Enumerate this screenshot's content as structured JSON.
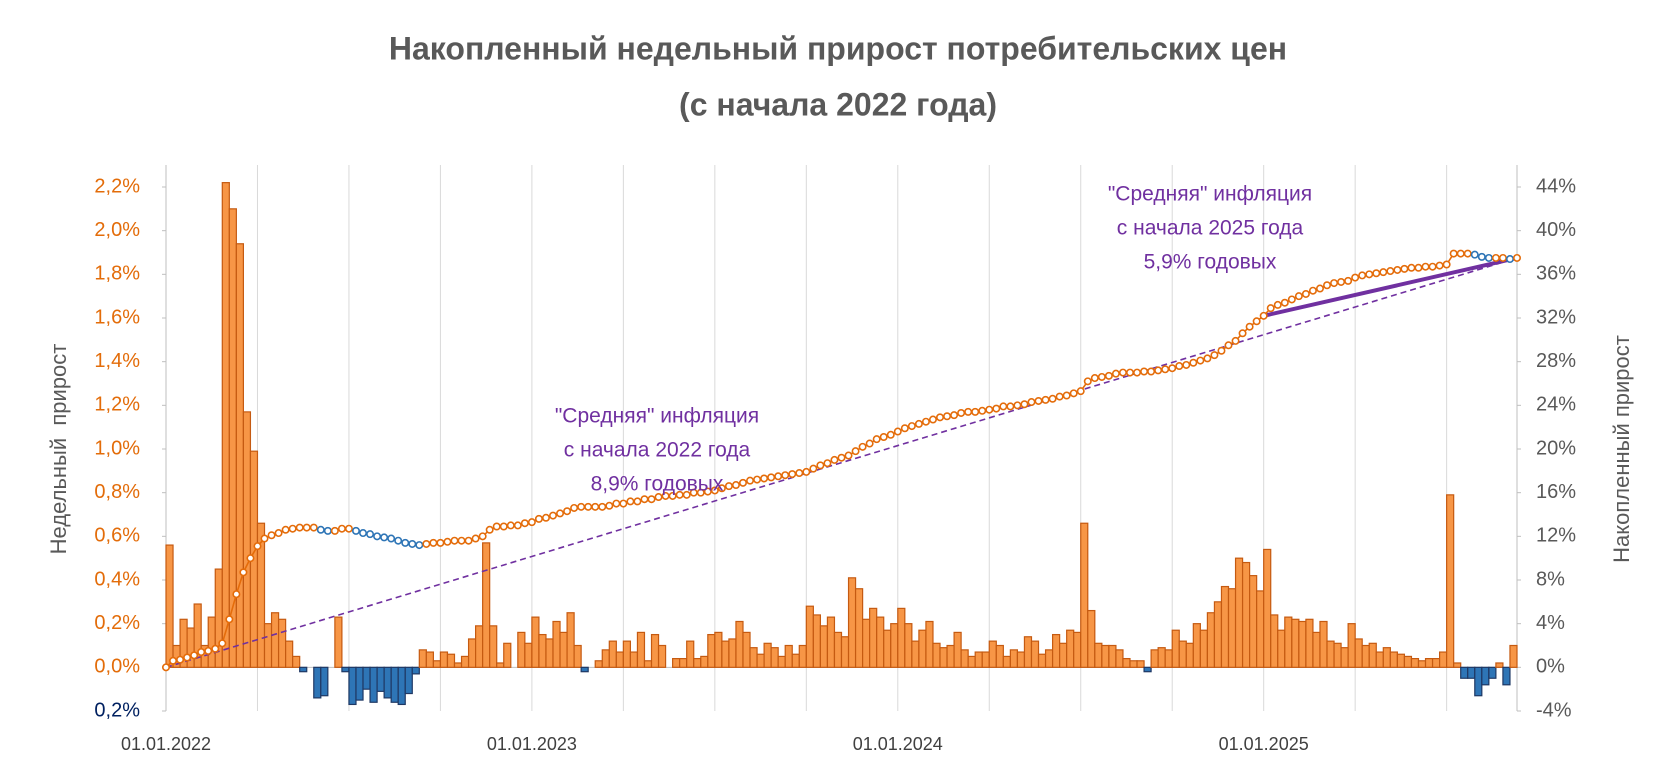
{
  "chart_data": {
    "type": "bar",
    "title": [
      "Накопленный недельный прирост потребительских цен",
      "(с начала 2022 года)"
    ],
    "y_label": "Недельный  прирост",
    "y2_label": "Накопленный прирост",
    "xlim": [
      0,
      192
    ],
    "xticks": [
      {
        "value": 0,
        "label": "01.01.2022"
      },
      {
        "value": 52,
        "label": "01.01.2023"
      },
      {
        "value": 104,
        "label": "01.01.2024"
      },
      {
        "value": 156,
        "label": "01.01.2025"
      }
    ],
    "xgrid": [
      13,
      26,
      39,
      65,
      78,
      91,
      117,
      130,
      143,
      169,
      182
    ],
    "ylim": [
      -0.2,
      2.2
    ],
    "yticks": [
      {
        "value": -0.2,
        "label": "0,2%"
      },
      {
        "value": 0,
        "label": "0,0%"
      },
      {
        "value": 0.2,
        "label": "0,2%"
      },
      {
        "value": 0.4,
        "label": "0,4%"
      },
      {
        "value": 0.6,
        "label": "0,6%"
      },
      {
        "value": 0.8,
        "label": "0,8%"
      },
      {
        "value": 1.0,
        "label": "1,0%"
      },
      {
        "value": 1.2,
        "label": "1,2%"
      },
      {
        "value": 1.4,
        "label": "1,4%"
      },
      {
        "value": 1.6,
        "label": "1,6%"
      },
      {
        "value": 1.8,
        "label": "1,8%"
      },
      {
        "value": 2.0,
        "label": "2,0%"
      },
      {
        "value": 2.2,
        "label": "2,2%"
      }
    ],
    "ytick_color": "#e36c09",
    "ytick_negative_color": "#002060",
    "y2lim": [
      -4,
      44
    ],
    "y2ticks": [
      {
        "value": -4,
        "label": "-4%"
      },
      {
        "value": 0,
        "label": "0%"
      },
      {
        "value": 4,
        "label": "4%"
      },
      {
        "value": 8,
        "label": "8%"
      },
      {
        "value": 12,
        "label": "12%"
      },
      {
        "value": 16,
        "label": "16%"
      },
      {
        "value": 20,
        "label": "20%"
      },
      {
        "value": 24,
        "label": "24%"
      },
      {
        "value": 28,
        "label": "28%"
      },
      {
        "value": 32,
        "label": "32%"
      },
      {
        "value": 36,
        "label": "36%"
      },
      {
        "value": 40,
        "label": "40%"
      },
      {
        "value": 44,
        "label": "44%"
      }
    ],
    "series": [
      {
        "type": "bar",
        "axis": "y",
        "color": "#f79646",
        "border": "#c55a11",
        "negative_color": "#2e75b6",
        "negative_border": "#1f3864",
        "values": [
          0.56,
          0.1,
          0.22,
          0.18,
          0.29,
          0.1,
          0.23,
          0.45,
          2.22,
          2.1,
          1.94,
          1.17,
          0.99,
          0.66,
          0.2,
          0.25,
          0.22,
          0.12,
          0.05,
          -0.02,
          0.0,
          -0.14,
          -0.13,
          0.0,
          0.23,
          -0.02,
          -0.17,
          -0.15,
          -0.1,
          -0.16,
          -0.11,
          -0.14,
          -0.16,
          -0.17,
          -0.12,
          -0.03,
          0.08,
          0.07,
          0.03,
          0.07,
          0.06,
          0.02,
          0.05,
          0.13,
          0.19,
          0.57,
          0.19,
          0.02,
          0.11,
          0.0,
          0.16,
          0.11,
          0.23,
          0.15,
          0.13,
          0.21,
          0.16,
          0.25,
          0.1,
          -0.02,
          0.0,
          0.03,
          0.08,
          0.12,
          0.07,
          0.12,
          0.07,
          0.16,
          0.03,
          0.15,
          0.1,
          0.0,
          0.04,
          0.04,
          0.12,
          0.04,
          0.05,
          0.15,
          0.16,
          0.12,
          0.13,
          0.21,
          0.16,
          0.09,
          0.06,
          0.11,
          0.09,
          0.05,
          0.1,
          0.06,
          0.1,
          0.28,
          0.24,
          0.19,
          0.23,
          0.16,
          0.14,
          0.41,
          0.36,
          0.22,
          0.27,
          0.23,
          0.17,
          0.2,
          0.27,
          0.2,
          0.12,
          0.17,
          0.21,
          0.11,
          0.09,
          0.1,
          0.16,
          0.08,
          0.05,
          0.07,
          0.07,
          0.12,
          0.1,
          0.05,
          0.08,
          0.07,
          0.14,
          0.12,
          0.06,
          0.08,
          0.15,
          0.11,
          0.17,
          0.16,
          0.66,
          0.26,
          0.11,
          0.1,
          0.1,
          0.08,
          0.04,
          0.03,
          0.03,
          -0.02,
          0.08,
          0.09,
          0.08,
          0.17,
          0.12,
          0.11,
          0.2,
          0.17,
          0.25,
          0.3,
          0.37,
          0.36,
          0.5,
          0.48,
          0.42,
          0.35,
          0.54,
          0.24,
          0.17,
          0.23,
          0.22,
          0.21,
          0.22,
          0.16,
          0.21,
          0.12,
          0.11,
          0.09,
          0.2,
          0.13,
          0.1,
          0.11,
          0.07,
          0.09,
          0.07,
          0.06,
          0.05,
          0.04,
          0.03,
          0.04,
          0.04,
          0.07,
          0.79,
          0.02,
          -0.05,
          -0.05,
          -0.13,
          -0.08,
          -0.05,
          0.02,
          -0.08,
          0.1
        ]
      },
      {
        "type": "line",
        "axis": "y2",
        "color": "#e46c0a",
        "decline_color": "#2e75b6",
        "markers": true,
        "values": [
          0,
          0.6,
          0.7,
          0.9,
          1.1,
          1.4,
          1.5,
          1.7,
          2.2,
          4.4,
          6.7,
          8.7,
          10.0,
          11.1,
          11.8,
          12.1,
          12.3,
          12.6,
          12.7,
          12.8,
          12.8,
          12.8,
          12.6,
          12.5,
          12.5,
          12.7,
          12.7,
          12.5,
          12.3,
          12.2,
          12.0,
          11.9,
          11.8,
          11.6,
          11.4,
          11.3,
          11.2,
          11.3,
          11.4,
          11.4,
          11.5,
          11.6,
          11.6,
          11.6,
          11.8,
          12.0,
          12.6,
          12.9,
          12.9,
          13.0,
          13.0,
          13.2,
          13.3,
          13.6,
          13.7,
          13.9,
          14.1,
          14.3,
          14.6,
          14.7,
          14.7,
          14.7,
          14.7,
          14.8,
          15.0,
          15.0,
          15.2,
          15.2,
          15.4,
          15.4,
          15.6,
          15.7,
          15.7,
          15.8,
          15.8,
          16.0,
          16.0,
          16.1,
          16.2,
          16.4,
          16.6,
          16.7,
          16.9,
          17.1,
          17.2,
          17.3,
          17.4,
          17.5,
          17.6,
          17.7,
          17.8,
          17.9,
          18.2,
          18.5,
          18.7,
          19.0,
          19.2,
          19.4,
          19.8,
          20.2,
          20.5,
          20.9,
          21.1,
          21.3,
          21.6,
          21.9,
          22.1,
          22.3,
          22.5,
          22.7,
          22.9,
          23.0,
          23.1,
          23.3,
          23.4,
          23.4,
          23.5,
          23.6,
          23.7,
          23.9,
          23.9,
          24.0,
          24.1,
          24.3,
          24.4,
          24.5,
          24.6,
          24.8,
          24.9,
          25.1,
          25.3,
          26.2,
          26.5,
          26.6,
          26.7,
          26.9,
          27.0,
          27.0,
          27.0,
          27.1,
          27.1,
          27.2,
          27.3,
          27.4,
          27.6,
          27.7,
          27.9,
          28.1,
          28.3,
          28.6,
          29.0,
          29.5,
          29.9,
          30.6,
          31.2,
          31.7,
          32.2,
          32.9,
          33.2,
          33.4,
          33.7,
          34.0,
          34.2,
          34.5,
          34.7,
          35.0,
          35.2,
          35.3,
          35.4,
          35.7,
          35.9,
          36.0,
          36.1,
          36.2,
          36.3,
          36.4,
          36.5,
          36.6,
          36.6,
          36.7,
          36.7,
          36.8,
          36.9,
          37.9,
          37.9,
          37.9,
          37.8,
          37.6,
          37.5,
          37.5,
          37.5,
          37.4,
          37.5
        ]
      },
      {
        "type": "line",
        "axis": "y2",
        "color": "#7030a0",
        "dashed": true,
        "x": [
          0,
          192
        ],
        "values": [
          0,
          37.5
        ]
      },
      {
        "type": "line",
        "axis": "y2",
        "color": "#7030a0",
        "width": 4,
        "x": [
          156,
          192
        ],
        "values": [
          32.2,
          37.5
        ]
      }
    ],
    "annotations": [
      {
        "color": "#7030a0",
        "lines": [
          "\"Средняя\" инфляция",
          "с начала 2022 года",
          "8,9% годовых"
        ]
      },
      {
        "color": "#7030a0",
        "lines": [
          "\"Средняя\" инфляция",
          "с начала 2025 года",
          "5,9% годовых"
        ]
      }
    ]
  }
}
